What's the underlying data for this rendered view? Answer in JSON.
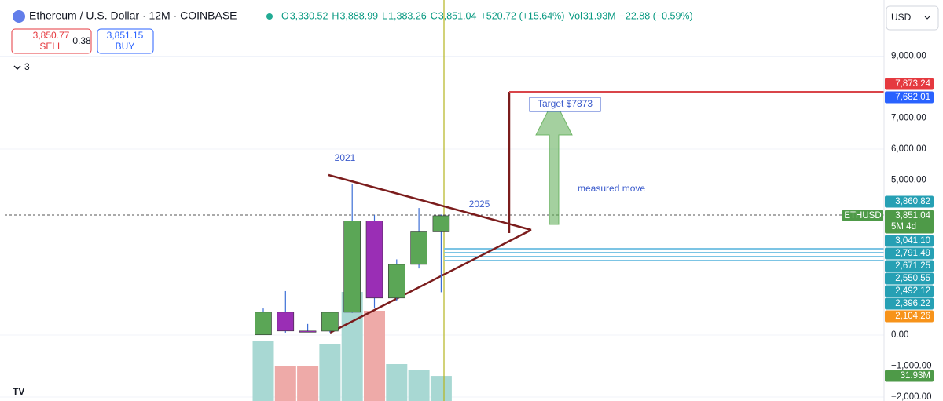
{
  "header": {
    "symbol": "Ethereum / U.S. Dollar · 12M · COINBASE",
    "o_key": "O",
    "o": "3,330.52",
    "h_key": "H",
    "h": "3,888.99",
    "l_key": "L",
    "l": "1,383.26",
    "c_key": "C",
    "c": "3,851.04",
    "change": "+520.72 (+15.64%)",
    "vol_key": "Vol",
    "vol": "31.93M",
    "vol_change": "−22.88 (−0.59%)",
    "sell_price": "3,850.77",
    "sell": "SELL",
    "spread": "0.38",
    "buy_price": "3,851.15",
    "buy": "BUY",
    "indicators": "3",
    "currency": "USD"
  },
  "annotations": {
    "year_2021": "2021",
    "year_2025": "2025",
    "target": "Target $7873",
    "measured_move": "measured move",
    "symbol_tag": "ETHUSD",
    "countdown": "5M 4d"
  },
  "price_labels": [
    {
      "text": "7,873.24",
      "color": "#e5393f"
    },
    {
      "text": "7,682.01",
      "color": "#2962ff"
    },
    {
      "text": "3,860.82",
      "color": "#26a0b4"
    },
    {
      "text": "3,851.04",
      "color": "#4e9a48"
    },
    {
      "text": "3,041.10",
      "color": "#26a0b4"
    },
    {
      "text": "2,791.49",
      "color": "#26a0b4"
    },
    {
      "text": "2,671.25",
      "color": "#26a0b4"
    },
    {
      "text": "2,550.55",
      "color": "#26a0b4"
    },
    {
      "text": "2,492.12",
      "color": "#26a0b4"
    },
    {
      "text": "2,396.22",
      "color": "#26a0b4"
    },
    {
      "text": "2,104.26",
      "color": "#f7931a"
    },
    {
      "text": "31.93M",
      "color": "#4e9a48"
    }
  ],
  "chart_data": {
    "type": "candlestick",
    "categories": [
      null,
      null,
      null,
      null,
      null,
      null,
      null,
      null,
      null
    ],
    "open": [
      8,
      740,
      133,
      129,
      737,
      3680,
      1196,
      2282,
      3330.52
    ],
    "high": [
      860,
      1420,
      360,
      750,
      4868,
      3880,
      2445,
      4100,
      3888.99
    ],
    "low": [
      7,
      80,
      102,
      86,
      718,
      880,
      1100,
      2150,
      1383.26
    ],
    "close": [
      740,
      133,
      129,
      737,
      3680,
      1196,
      2282,
      3330,
      3851.04
    ],
    "up_color": "#5ba656",
    "down_color": "#9a2eb5",
    "volume": [
      76,
      45,
      45,
      72,
      139,
      115,
      47,
      40,
      31.93
    ],
    "volume_up_color": "#a8d8d3",
    "volume_down_color": "#eeaaa8",
    "volume_lim": [
      0,
      495
    ],
    "ylim": [
      -2125,
      10810
    ],
    "yticks": [
      {
        "value": 9000,
        "label": "9,000.00"
      },
      {
        "value": 7000,
        "label": "7,000.00"
      },
      {
        "value": 6000,
        "label": "6,000.00"
      },
      {
        "value": 5000,
        "label": "5,000.00"
      },
      {
        "value": 0,
        "label": "0.00"
      },
      {
        "value": -1000,
        "label": "−1,000.00"
      },
      {
        "value": -2000,
        "label": "−2,000.00"
      }
    ],
    "grid": true
  }
}
